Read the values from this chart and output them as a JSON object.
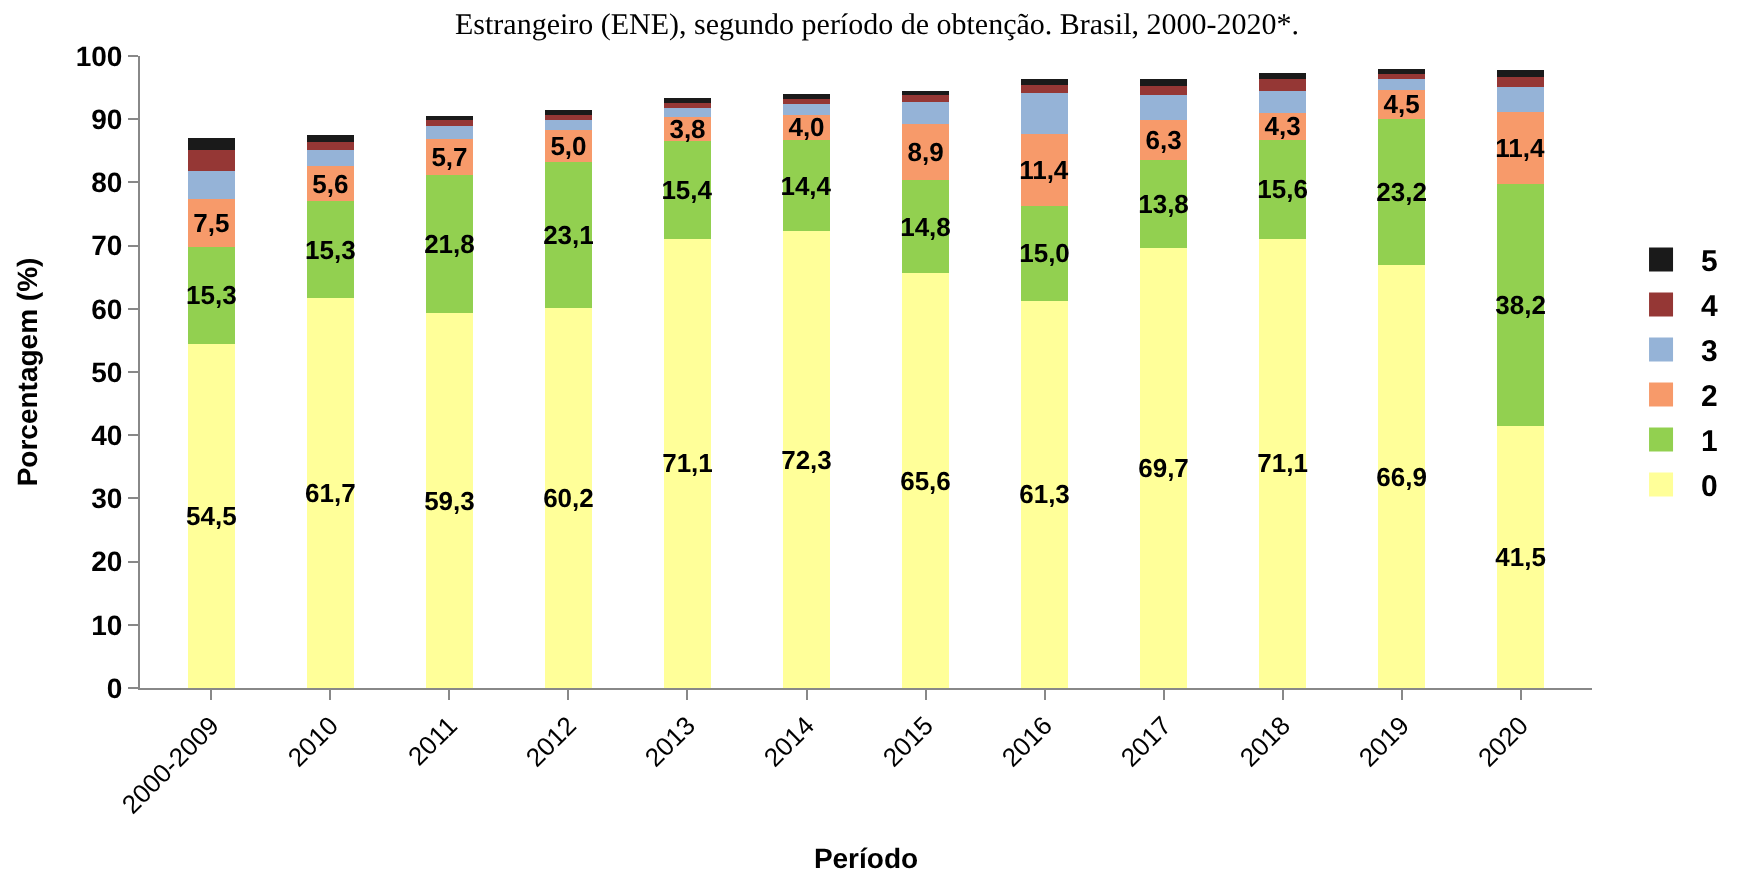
{
  "chart_data": {
    "type": "bar",
    "stacked": true,
    "title": "Estrangeiro (ENE), segundo período de obtenção. Brasil, 2000-2020*.",
    "xlabel": "Período",
    "ylabel": "Porcentagem (%)",
    "categories": [
      "2000-2009",
      "2010",
      "2011",
      "2012",
      "2013",
      "2014",
      "2015",
      "2016",
      "2017",
      "2018",
      "2019",
      "2020"
    ],
    "ylim": [
      0,
      100
    ],
    "yticks": [
      0,
      10,
      20,
      30,
      40,
      50,
      60,
      70,
      80,
      90,
      100
    ],
    "legend": "right",
    "series": [
      {
        "name": "0",
        "color": "#ffff99",
        "values": [
          54.5,
          61.7,
          59.3,
          60.2,
          71.1,
          72.3,
          65.6,
          61.3,
          69.7,
          71.1,
          66.9,
          41.5
        ],
        "value_labels": [
          "54,5",
          "61,7",
          "59,3",
          "60,2",
          "71,1",
          "72,3",
          "65,6",
          "61,3",
          "69,7",
          "71,1",
          "66,9",
          "41,5"
        ]
      },
      {
        "name": "1",
        "color": "#92d050",
        "values": [
          15.3,
          15.3,
          21.8,
          23.1,
          15.4,
          14.4,
          14.8,
          15.0,
          13.8,
          15.6,
          23.2,
          38.2
        ],
        "value_labels": [
          "15,3",
          "15,3",
          "21,8",
          "23,1",
          "15,4",
          "14,4",
          "14,8",
          "15,0",
          "13,8",
          "15,6",
          "23,2",
          "38,2"
        ]
      },
      {
        "name": "2",
        "color": "#f79a6a",
        "values": [
          7.5,
          5.6,
          5.7,
          5.0,
          3.8,
          4.0,
          8.9,
          11.4,
          6.3,
          4.3,
          4.5,
          11.4
        ],
        "value_labels": [
          "7,5",
          "5,6",
          "5,7",
          "5,0",
          "3,8",
          "4,0",
          "8,9",
          "11,4",
          "6,3",
          "4,3",
          "4,5",
          "11,4"
        ]
      },
      {
        "name": "3",
        "color": "#95b3d7",
        "values": [
          4.5,
          2.5,
          2.2,
          1.5,
          1.5,
          1.7,
          3.5,
          6.5,
          4.0,
          3.5,
          1.8,
          4.0
        ]
      },
      {
        "name": "4",
        "color": "#953735",
        "values": [
          3.3,
          1.3,
          0.8,
          0.9,
          0.8,
          0.8,
          1.0,
          1.2,
          1.5,
          1.8,
          1.0,
          1.5
        ]
      },
      {
        "name": "5",
        "color": "#1a1a1a",
        "values": [
          1.9,
          1.1,
          0.7,
          0.8,
          0.7,
          0.8,
          0.7,
          0.9,
          1.0,
          1.0,
          0.6,
          1.2
        ]
      }
    ]
  }
}
